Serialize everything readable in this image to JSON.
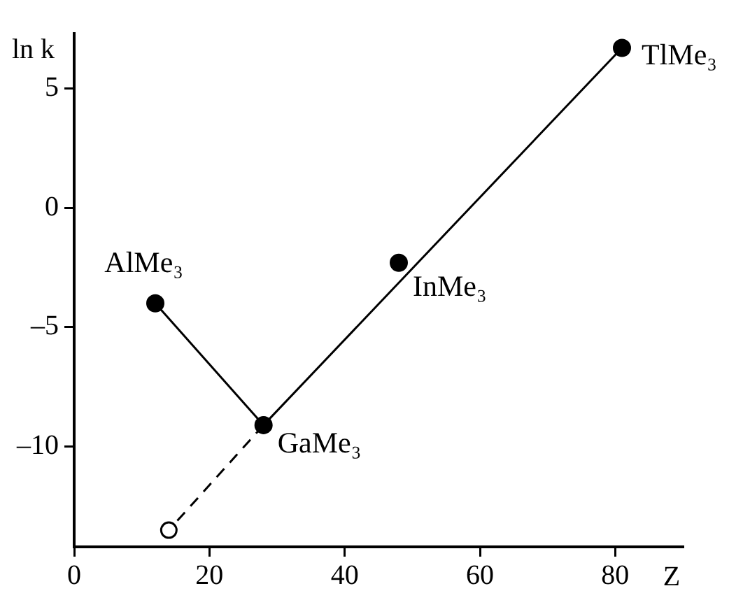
{
  "chart_data": {
    "type": "line",
    "xlabel": "Z",
    "ylabel": "ln k",
    "xlim": [
      0,
      90
    ],
    "ylim": [
      -14.2,
      7.3
    ],
    "xticks": [
      0,
      20,
      40,
      60,
      80
    ],
    "yticks": [
      {
        "value": -10,
        "label": "–10"
      },
      {
        "value": -5,
        "label": "–5"
      },
      0,
      5
    ],
    "grid": false,
    "legend": false,
    "series": [
      {
        "type": "line",
        "x": [
          28,
          14
        ],
        "values": [
          -9.1,
          -13.5
        ],
        "color": "#000000",
        "line_style": "dashed",
        "marker": "circle"
      },
      {
        "type": "line",
        "x": [
          12,
          28,
          81
        ],
        "values": [
          -4,
          -9.1,
          6.7
        ],
        "color": "#000000",
        "line_style": "solid",
        "marker": "circle"
      },
      {
        "type": "scatter",
        "x": [
          48
        ],
        "values": [
          -2.3
        ],
        "color": "#000000",
        "marker": "circle"
      }
    ],
    "annotations": [
      {
        "text": "AlMe₃",
        "x": 12,
        "y": -4
      },
      {
        "text": "GaMe₃",
        "x": 28,
        "y": -9.1
      },
      {
        "text": "InMe₃",
        "x": 48,
        "y": -2.3
      },
      {
        "text": "TlMe₃",
        "x": 81,
        "y": 6.7
      }
    ]
  }
}
